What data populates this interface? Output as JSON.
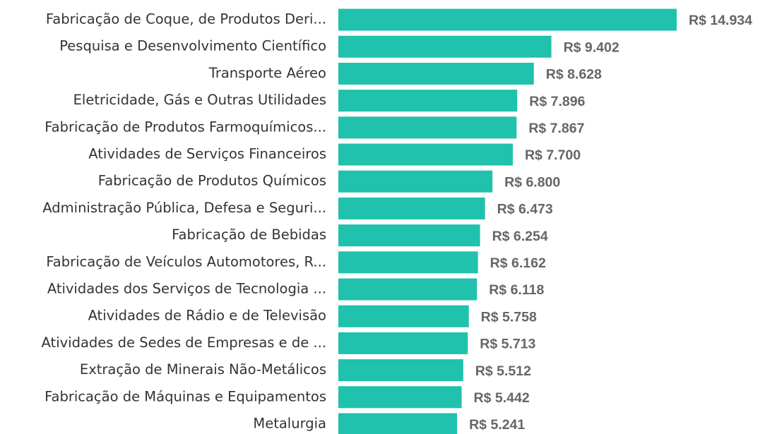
{
  "chart_data": {
    "type": "bar",
    "orientation": "horizontal",
    "color": "#20c1ad",
    "categories": [
      "Fabricação de Coque, de Produtos Deri...",
      "Pesquisa e Desenvolvimento Científico",
      "Transporte Aéreo",
      "Eletricidade, Gás e Outras Utilidades",
      "Fabricação de Produtos Farmoquímicos...",
      "Atividades de Serviços Financeiros",
      "Fabricação de Produtos Químicos",
      "Administração Pública, Defesa e Seguri...",
      "Fabricação de Bebidas",
      "Fabricação de Veículos Automotores, R...",
      "Atividades dos Serviços de Tecnologia ...",
      "Atividades de Rádio e de Televisão",
      "Atividades de Sedes de Empresas e de ...",
      "Extração de Minerais Não-Metálicos",
      "Fabricação de Máquinas e Equipamentos",
      "Metalurgia"
    ],
    "values": [
      14934,
      9402,
      8628,
      7896,
      7867,
      7700,
      6800,
      6473,
      6254,
      6162,
      6118,
      5758,
      5713,
      5512,
      5442,
      5241
    ],
    "value_labels": [
      "R$ 14.934",
      "R$ 9.402",
      "R$ 8.628",
      "R$ 7.896",
      "R$ 7.867",
      "R$ 7.700",
      "R$ 6.800",
      "R$ 6.473",
      "R$ 6.254",
      "R$ 6.162",
      "R$ 6.118",
      "R$ 5.758",
      "R$ 5.713",
      "R$ 5.512",
      "R$ 5.442",
      "R$ 5.241"
    ]
  }
}
